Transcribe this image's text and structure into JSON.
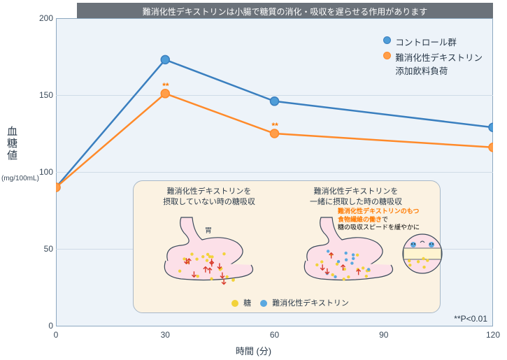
{
  "banner": "難消化性デキストリンは小腸で糖質の消化・吸収を遅らせる作用があります",
  "axes": {
    "y_label": "血糖値",
    "y_unit": "(mg/100mL)",
    "x_label": "時間 (分)",
    "y_ticks": [
      0,
      50,
      100,
      150,
      200
    ],
    "x_ticks": [
      0,
      30,
      60,
      90,
      120
    ],
    "ylim": [
      0,
      200
    ],
    "xlim": [
      0,
      120
    ],
    "background": "#edf3f9",
    "grid_color": "#cfdbe7"
  },
  "series": [
    {
      "name": "コントロール群",
      "color": "#3a7fbf",
      "fill": "#4f9dd8",
      "x": [
        0,
        30,
        60,
        120
      ],
      "y": [
        90,
        173,
        146,
        129
      ]
    },
    {
      "name": "難消化性デキストリン\n添加飲料負荷",
      "color": "#ff8a2a",
      "fill": "#ff9e4a",
      "x": [
        0,
        30,
        60,
        120
      ],
      "y": [
        90,
        151,
        125,
        116
      ]
    }
  ],
  "significance": {
    "marker": "**",
    "color": "#ff7a00",
    "points": [
      {
        "series": 1,
        "idx": 1
      },
      {
        "series": 1,
        "idx": 2
      }
    ],
    "note": "**P<0.01"
  },
  "panel": {
    "left_title": "難消化性デキストリンを\n摂取していない時の糖吸収",
    "right_title": "難消化性デキストリンを\n一緒に摂取した時の糖吸収",
    "right_note_hl": "難消化性デキストリンのもつ\n食物繊維の働き",
    "right_note_rest": "で\n糖の吸収スピードを緩やかに",
    "organ_label": "胃",
    "legend_sugar": "糖",
    "legend_dextrin": "難消化性デキストリン",
    "sugar_color": "#f2d23a",
    "dextrin_color": "#5aa8e0",
    "bg": "#fbf2e2"
  }
}
